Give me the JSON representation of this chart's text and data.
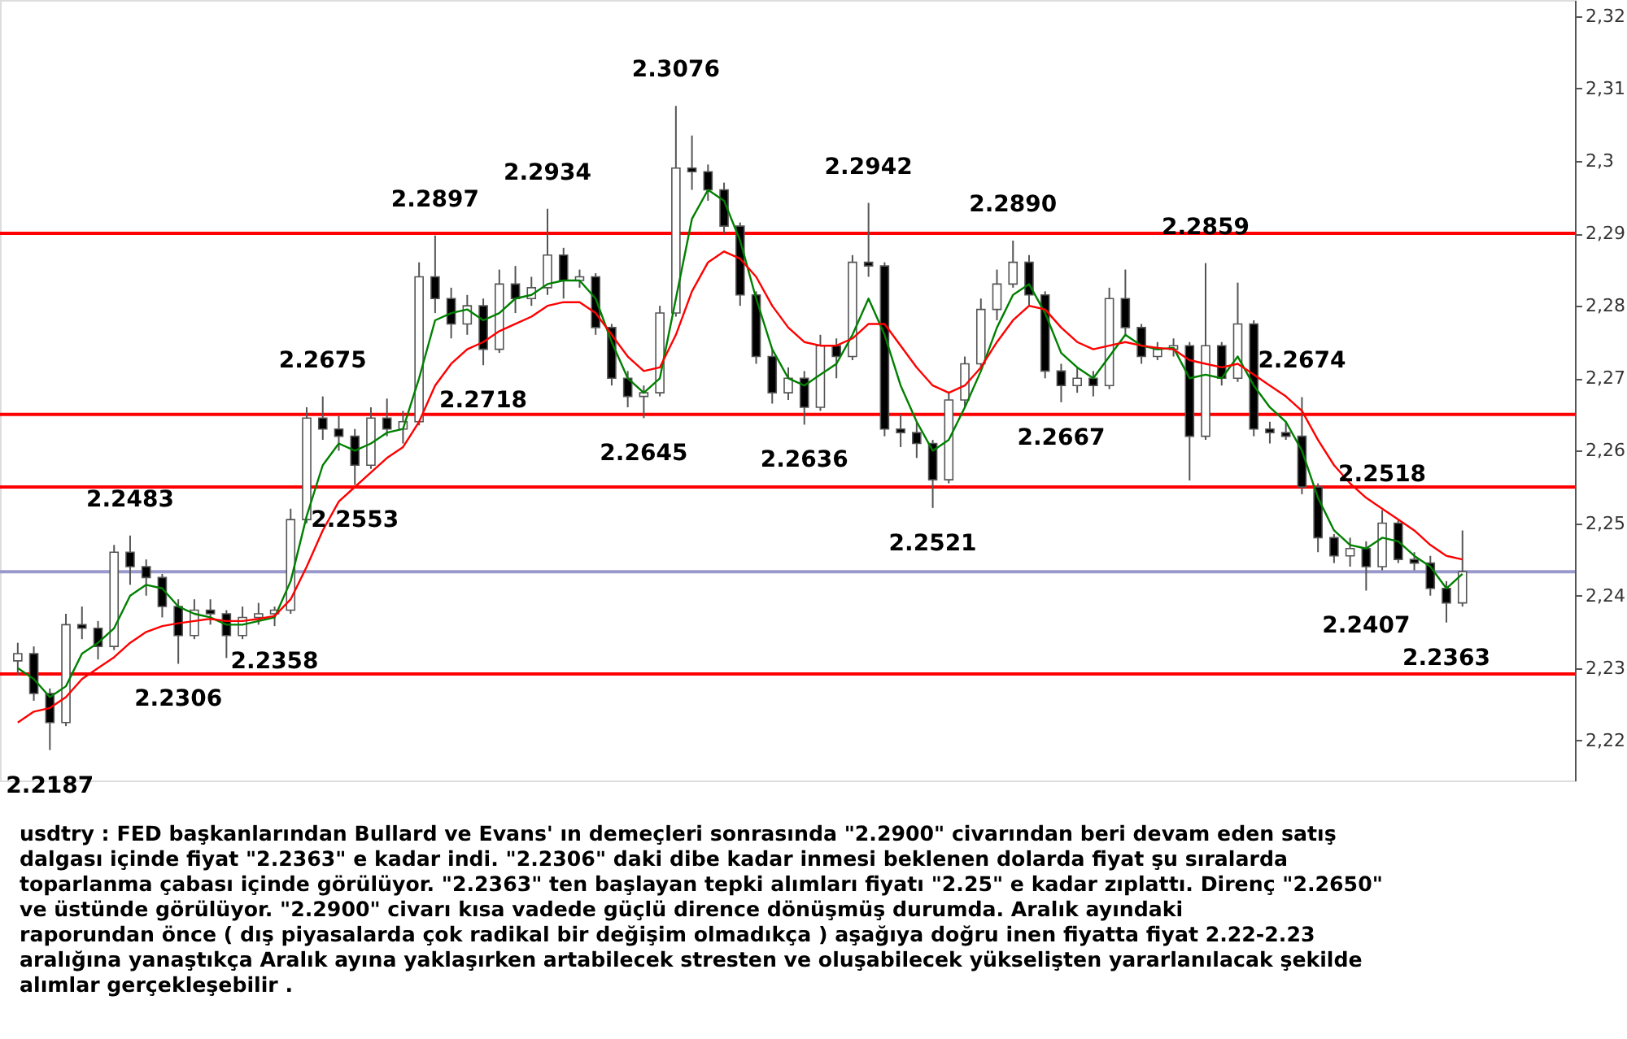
{
  "chart_data": {
    "type": "candlestick",
    "categories": [
      null,
      null,
      null,
      null,
      null,
      null,
      null,
      null,
      null,
      null,
      null,
      null,
      null,
      null,
      null,
      null,
      null,
      null,
      null,
      null,
      null,
      null,
      null,
      null,
      null,
      null,
      null,
      null,
      null,
      null,
      null,
      null,
      null,
      null,
      null,
      null,
      null,
      null,
      null,
      null,
      null,
      null,
      null,
      null,
      null,
      null,
      null,
      null,
      null,
      null,
      null,
      null,
      null,
      null,
      null,
      null,
      null,
      null,
      null,
      null,
      null,
      null,
      null,
      null,
      null,
      null,
      null,
      null,
      null,
      null,
      null,
      null,
      null,
      null,
      null,
      null,
      null,
      null,
      null,
      null,
      null,
      null,
      null,
      null,
      null,
      null,
      null,
      null,
      null,
      null,
      null
    ],
    "ohlc": [
      [
        2.231,
        2.2335,
        2.229,
        2.232
      ],
      [
        2.232,
        2.233,
        2.2255,
        2.2265
      ],
      [
        2.2265,
        2.2272,
        2.2187,
        2.2225
      ],
      [
        2.2225,
        2.2375,
        2.222,
        2.236
      ],
      [
        2.236,
        2.2385,
        2.234,
        2.2355
      ],
      [
        2.2355,
        2.2365,
        2.2312,
        2.233
      ],
      [
        2.233,
        2.247,
        2.2325,
        2.246
      ],
      [
        2.246,
        2.2483,
        2.2415,
        2.244
      ],
      [
        2.244,
        2.245,
        2.24,
        2.2425
      ],
      [
        2.2425,
        2.243,
        2.237,
        2.2385
      ],
      [
        2.2385,
        2.2395,
        2.2306,
        2.2345
      ],
      [
        2.2345,
        2.2395,
        2.234,
        2.238
      ],
      [
        2.238,
        2.2395,
        2.236,
        2.2375
      ],
      [
        2.2375,
        2.238,
        2.2314,
        2.2345
      ],
      [
        2.2345,
        2.2385,
        2.234,
        2.237
      ],
      [
        2.237,
        2.239,
        2.236,
        2.2375
      ],
      [
        2.2375,
        2.2385,
        2.2358,
        2.238
      ],
      [
        2.238,
        2.252,
        2.2375,
        2.2505
      ],
      [
        2.2505,
        2.266,
        2.25,
        2.2645
      ],
      [
        2.2645,
        2.2675,
        2.2615,
        2.263
      ],
      [
        2.263,
        2.2648,
        2.26,
        2.262
      ],
      [
        2.262,
        2.263,
        2.2553,
        2.258
      ],
      [
        2.258,
        2.266,
        2.2575,
        2.2645
      ],
      [
        2.2645,
        2.2672,
        2.262,
        2.263
      ],
      [
        2.263,
        2.2655,
        2.261,
        2.264
      ],
      [
        2.264,
        2.286,
        2.2635,
        2.284
      ],
      [
        2.284,
        2.2897,
        2.279,
        2.281
      ],
      [
        2.281,
        2.2825,
        2.2755,
        2.2775
      ],
      [
        2.2775,
        2.2815,
        2.276,
        2.28
      ],
      [
        2.28,
        2.281,
        2.2718,
        2.274
      ],
      [
        2.274,
        2.285,
        2.2735,
        2.283
      ],
      [
        2.283,
        2.2855,
        2.279,
        2.281
      ],
      [
        2.281,
        2.284,
        2.28,
        2.2825
      ],
      [
        2.2825,
        2.2934,
        2.2815,
        2.287
      ],
      [
        2.287,
        2.288,
        2.281,
        2.2835
      ],
      [
        2.2835,
        2.285,
        2.2825,
        2.284
      ],
      [
        2.284,
        2.2845,
        2.276,
        2.277
      ],
      [
        2.277,
        2.2775,
        2.269,
        2.27
      ],
      [
        2.27,
        2.271,
        2.266,
        2.2675
      ],
      [
        2.2675,
        2.269,
        2.2645,
        2.268
      ],
      [
        2.268,
        2.28,
        2.2675,
        2.279
      ],
      [
        2.279,
        2.3076,
        2.2785,
        2.299
      ],
      [
        2.299,
        2.3035,
        2.296,
        2.2985
      ],
      [
        2.2985,
        2.2995,
        2.2945,
        2.296
      ],
      [
        2.296,
        2.297,
        2.29,
        2.291
      ],
      [
        2.291,
        2.2915,
        2.28,
        2.2815
      ],
      [
        2.2815,
        2.282,
        2.272,
        2.273
      ],
      [
        2.273,
        2.274,
        2.2665,
        2.268
      ],
      [
        2.268,
        2.2715,
        2.267,
        2.27
      ],
      [
        2.27,
        2.271,
        2.2636,
        2.266
      ],
      [
        2.266,
        2.276,
        2.2655,
        2.2745
      ],
      [
        2.2745,
        2.2755,
        2.27,
        2.273
      ],
      [
        2.273,
        2.287,
        2.2725,
        2.286
      ],
      [
        2.286,
        2.2942,
        2.284,
        2.2855
      ],
      [
        2.2855,
        2.286,
        2.262,
        2.263
      ],
      [
        2.263,
        2.265,
        2.2605,
        2.2625
      ],
      [
        2.2625,
        2.264,
        2.259,
        2.261
      ],
      [
        2.261,
        2.2615,
        2.2521,
        2.256
      ],
      [
        2.256,
        2.268,
        2.2555,
        2.267
      ],
      [
        2.267,
        2.273,
        2.266,
        2.272
      ],
      [
        2.272,
        2.281,
        2.2715,
        2.2795
      ],
      [
        2.2795,
        2.285,
        2.278,
        2.283
      ],
      [
        2.283,
        2.289,
        2.2825,
        2.286
      ],
      [
        2.286,
        2.287,
        2.28,
        2.2815
      ],
      [
        2.2815,
        2.282,
        2.27,
        2.271
      ],
      [
        2.271,
        2.272,
        2.2667,
        2.269
      ],
      [
        2.269,
        2.2715,
        2.268,
        2.27
      ],
      [
        2.27,
        2.271,
        2.2675,
        2.269
      ],
      [
        2.269,
        2.2825,
        2.2685,
        2.281
      ],
      [
        2.281,
        2.285,
        2.276,
        2.277
      ],
      [
        2.277,
        2.2775,
        2.272,
        2.273
      ],
      [
        2.273,
        2.275,
        2.2725,
        2.274
      ],
      [
        2.274,
        2.2755,
        2.273,
        2.2745
      ],
      [
        2.2745,
        2.275,
        2.2559,
        2.262
      ],
      [
        2.262,
        2.2859,
        2.2615,
        2.2745
      ],
      [
        2.2745,
        2.275,
        2.269,
        2.27
      ],
      [
        2.27,
        2.2832,
        2.2695,
        2.2775
      ],
      [
        2.2775,
        2.278,
        2.262,
        2.263
      ],
      [
        2.263,
        2.264,
        2.261,
        2.2625
      ],
      [
        2.2625,
        2.264,
        2.2615,
        2.262
      ],
      [
        2.262,
        2.2674,
        2.254,
        2.255
      ],
      [
        2.255,
        2.2555,
        2.246,
        2.248
      ],
      [
        2.248,
        2.2485,
        2.2445,
        2.2455
      ],
      [
        2.2455,
        2.248,
        2.244,
        2.2465
      ],
      [
        2.2465,
        2.2475,
        2.2407,
        2.244
      ],
      [
        2.244,
        2.2518,
        2.2435,
        2.25
      ],
      [
        2.25,
        2.2505,
        2.2445,
        2.245
      ],
      [
        2.245,
        2.246,
        2.2435,
        2.2445
      ],
      [
        2.2445,
        2.2455,
        2.24,
        2.241
      ],
      [
        2.241,
        2.242,
        2.2363,
        2.239
      ],
      [
        2.239,
        2.249,
        2.2385,
        2.2433
      ]
    ],
    "series": [
      {
        "type": "line",
        "color": "#008000",
        "values": [
          2.23,
          2.2285,
          2.226,
          2.2275,
          2.232,
          2.2335,
          2.2355,
          2.24,
          2.2415,
          2.241,
          2.2385,
          2.2375,
          2.237,
          2.236,
          2.236,
          2.2365,
          2.237,
          2.242,
          2.251,
          2.258,
          2.261,
          2.26,
          2.261,
          2.2625,
          2.263,
          2.27,
          2.278,
          2.279,
          2.2795,
          2.278,
          2.279,
          2.281,
          2.2815,
          2.283,
          2.2835,
          2.2835,
          2.281,
          2.275,
          2.27,
          2.268,
          2.27,
          2.281,
          2.292,
          2.296,
          2.2945,
          2.289,
          2.281,
          2.274,
          2.27,
          2.269,
          2.2705,
          2.272,
          2.276,
          2.281,
          2.276,
          2.269,
          2.264,
          2.26,
          2.2615,
          2.266,
          2.271,
          2.277,
          2.2815,
          2.283,
          2.279,
          2.2735,
          2.2715,
          2.27,
          2.273,
          2.276,
          2.2745,
          2.274,
          2.2742,
          2.27,
          2.2705,
          2.27,
          2.273,
          2.269,
          2.266,
          2.264,
          2.26,
          2.2535,
          2.249,
          2.247,
          2.2465,
          2.248,
          2.2475,
          2.2455,
          2.244,
          2.241,
          2.243
        ]
      },
      {
        "type": "line",
        "color": "#ff0000",
        "values": [
          2.2225,
          2.224,
          2.2245,
          2.226,
          2.2285,
          2.23,
          2.2315,
          2.2335,
          2.235,
          2.2358,
          2.2362,
          2.2365,
          2.2368,
          2.2365,
          2.2365,
          2.2368,
          2.2372,
          2.2395,
          2.244,
          2.249,
          2.253,
          2.255,
          2.257,
          2.259,
          2.2605,
          2.264,
          2.269,
          2.272,
          2.274,
          2.275,
          2.2765,
          2.2775,
          2.2785,
          2.28,
          2.2805,
          2.2805,
          2.279,
          2.276,
          2.273,
          2.271,
          2.2715,
          2.276,
          2.282,
          2.286,
          2.2875,
          2.2865,
          2.284,
          2.28,
          2.277,
          2.275,
          2.2745,
          2.2745,
          2.2755,
          2.2775,
          2.2775,
          2.2745,
          2.2715,
          2.269,
          2.268,
          2.269,
          2.2715,
          2.275,
          2.278,
          2.28,
          2.2795,
          2.277,
          2.275,
          2.274,
          2.2745,
          2.275,
          2.2745,
          2.2742,
          2.274,
          2.2725,
          2.272,
          2.2715,
          2.272,
          2.2705,
          2.269,
          2.2675,
          2.2655,
          2.2615,
          2.258,
          2.2555,
          2.2535,
          2.252,
          2.2505,
          2.249,
          2.247,
          2.2455,
          2.245
        ]
      }
    ],
    "ylim": [
      2.2145,
      2.3222
    ],
    "yticks": [
      {
        "value": 2.22,
        "label": "2,22"
      },
      {
        "value": 2.23,
        "label": "2,23"
      },
      {
        "value": 2.24,
        "label": "2,24"
      },
      {
        "value": 2.25,
        "label": "2,25"
      },
      {
        "value": 2.26,
        "label": "2,26"
      },
      {
        "value": 2.27,
        "label": "2,27"
      },
      {
        "value": 2.28,
        "label": "2,28"
      },
      {
        "value": 2.29,
        "label": "2,29"
      },
      {
        "value": 2.3,
        "label": "2,3"
      },
      {
        "value": 2.31,
        "label": "2,31"
      },
      {
        "value": 2.32,
        "label": "2,32"
      }
    ],
    "tick_labels": "y",
    "ref_lines": [
      {
        "axis": "y",
        "value": 2.29,
        "color": "#ff0000"
      },
      {
        "axis": "y",
        "value": 2.265,
        "color": "#ff0000"
      },
      {
        "axis": "y",
        "value": 2.255,
        "color": "#ff0000"
      },
      {
        "axis": "y",
        "value": 2.2292,
        "color": "#ff0000"
      },
      {
        "axis": "y",
        "value": 2.2433,
        "color": "#9999cc"
      }
    ],
    "annotations": [
      {
        "text": "2.2187",
        "y": 2.2187
      },
      {
        "text": "2.2483",
        "y": 2.2483
      },
      {
        "text": "2.2306",
        "y": 2.2306
      },
      {
        "text": "2.2358",
        "y": 2.2358
      },
      {
        "text": "2.2675",
        "y": 2.2675
      },
      {
        "text": "2.2553",
        "y": 2.2553
      },
      {
        "text": "2.2897",
        "y": 2.2897
      },
      {
        "text": "2.2718",
        "y": 2.2718
      },
      {
        "text": "2.2934",
        "y": 2.2934
      },
      {
        "text": "2.2645",
        "y": 2.2645
      },
      {
        "text": "2.3076",
        "y": 2.3076
      },
      {
        "text": "2.2636",
        "y": 2.2636
      },
      {
        "text": "2.2942",
        "y": 2.2942
      },
      {
        "text": "2.2521",
        "y": 2.2521
      },
      {
        "text": "2.2890",
        "y": 2.289
      },
      {
        "text": "2.2667",
        "y": 2.2667
      },
      {
        "text": "2.2859",
        "y": 2.2859
      },
      {
        "text": "2.2674",
        "y": 2.2674
      },
      {
        "text": "2.2518",
        "y": 2.2518
      },
      {
        "text": "2.2407",
        "y": 2.2407
      },
      {
        "text": "2.2363",
        "y": 2.2363
      },
      "usdtry : FED başkanlarından Bullard ve Evans' ın demeçleri sonrasında \"2.2900\" civarından beri devam eden satış",
      "dalgası  içinde fiyat \"2.2363\" e kadar indi. \"2.2306\" daki dibe kadar inmesi beklenen dolarda fiyat şu sıralarda",
      "toparlanma çabası içinde görülüyor. \"2.2363\" ten başlayan tepki alımları fiyatı \"2.25\" e kadar zıplattı. Direnç \"2.2650\"",
      "ve üstünde görülüyor. \"2.2900\" civarı kısa vadede güçlü dirence dönüşmüş durumda. Aralık ayındaki",
      "raporundan önce ( dış piyasalarda çok radikal bir değişim olmadıkça ) aşağıya doğru inen fiyatta fiyat 2.22-2.23",
      "aralığına yanaştıkça Aralık ayına yaklaşırken artabilecek stresten ve oluşabilecek yükselişten yararlanılacak şekilde",
      "alımlar gerçekleşebilir ."
    ]
  }
}
